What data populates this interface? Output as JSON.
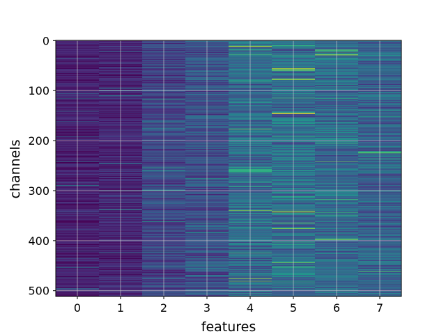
{
  "chart_data": {
    "type": "heatmap",
    "title": "",
    "xlabel": "features",
    "ylabel": "channels",
    "x_categories": [
      "0",
      "1",
      "2",
      "3",
      "4",
      "5",
      "6",
      "7"
    ],
    "y_range": [
      0,
      511
    ],
    "y_ticks": [
      "0",
      "100",
      "200",
      "300",
      "400",
      "500"
    ],
    "rows": 512,
    "colormap": "viridis",
    "grid": true,
    "feature_mean_intensity": [
      0.08,
      0.1,
      0.2,
      0.24,
      0.34,
      0.36,
      0.34,
      0.3
    ],
    "notable_bright_bands": [
      {
        "feature": "4",
        "channels": [
          257,
          263
        ],
        "intensity": 0.62
      },
      {
        "feature": "4",
        "channels": [
          11,
          12
        ],
        "intensity": 0.85
      },
      {
        "feature": "5",
        "channels": [
          145,
          146
        ],
        "intensity": 0.98
      },
      {
        "feature": "5",
        "channels": [
          56,
          57
        ],
        "intensity": 0.9
      },
      {
        "feature": "5",
        "channels": [
          77,
          78
        ],
        "intensity": 0.85
      },
      {
        "feature": "5",
        "channels": [
          342,
          343
        ],
        "intensity": 0.85
      },
      {
        "feature": "6",
        "channels": [
          28,
          29
        ],
        "intensity": 0.8
      },
      {
        "feature": "6",
        "channels": [
          397,
          398
        ],
        "intensity": 0.78
      },
      {
        "feature": "7",
        "channels": [
          223,
          225
        ],
        "intensity": 0.7
      }
    ]
  }
}
